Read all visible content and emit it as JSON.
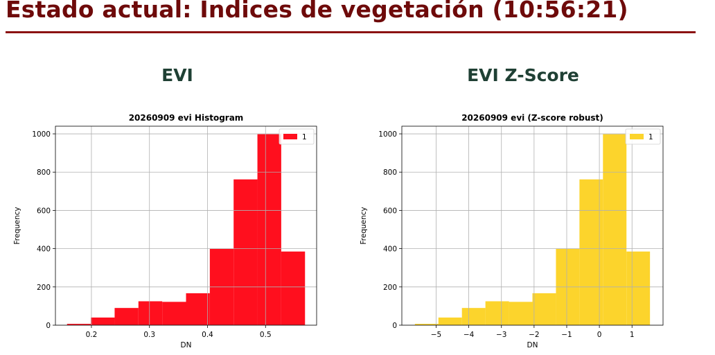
{
  "page": {
    "title": "Estado actual: Índices de vegetación (10:56:21)",
    "left_heading": "EVI",
    "right_heading": "EVI Z-Score"
  },
  "colors": {
    "title": "#6e0a0a",
    "heading": "#1f4034",
    "evi_bars": "#ff0f1e",
    "zscore_bars": "#fcd42c"
  },
  "chart_data": [
    {
      "type": "bar",
      "title": "20260909 evi Histogram",
      "xlabel": "DN",
      "ylabel": "Frequency",
      "xlim": [
        0.138,
        0.588
      ],
      "ylim": [
        0,
        1040
      ],
      "xticks": [
        0.2,
        0.3,
        0.4,
        0.5
      ],
      "xtick_labels": [
        "0.2",
        "0.3",
        "0.4",
        "0.5"
      ],
      "yticks": [
        0,
        200,
        400,
        600,
        800,
        1000
      ],
      "ytick_labels": [
        "0",
        "200",
        "400",
        "600",
        "800",
        "1000"
      ],
      "grid": true,
      "legend_position": "top-right",
      "bin_edges": [
        0.158,
        0.199,
        0.24,
        0.281,
        0.322,
        0.363,
        0.404,
        0.445,
        0.486,
        0.527,
        0.568
      ],
      "series": [
        {
          "name": "1",
          "color": "#ff0f1e",
          "values": [
            7,
            40,
            90,
            125,
            122,
            167,
            400,
            762,
            998,
            385
          ]
        }
      ]
    },
    {
      "type": "bar",
      "title": "20260909 evi (Z-score robust)",
      "xlabel": "DN",
      "ylabel": "Frequency",
      "xlim": [
        -6.05,
        1.95
      ],
      "ylim": [
        0,
        1040
      ],
      "xticks": [
        -5,
        -4,
        -3,
        -2,
        -1,
        0,
        1
      ],
      "xtick_labels": [
        "−5",
        "−4",
        "−3",
        "−2",
        "−1",
        "0",
        "1"
      ],
      "yticks": [
        0,
        200,
        400,
        600,
        800,
        1000
      ],
      "ytick_labels": [
        "0",
        "200",
        "400",
        "600",
        "800",
        "1000"
      ],
      "grid": true,
      "legend_position": "top-right",
      "bin_edges": [
        -5.65,
        -4.93,
        -4.21,
        -3.49,
        -2.77,
        -2.05,
        -1.33,
        -0.61,
        0.11,
        0.83,
        1.55
      ],
      "series": [
        {
          "name": "1",
          "color": "#fcd42c",
          "values": [
            7,
            40,
            90,
            125,
            122,
            167,
            400,
            762,
            998,
            385
          ]
        }
      ]
    }
  ]
}
